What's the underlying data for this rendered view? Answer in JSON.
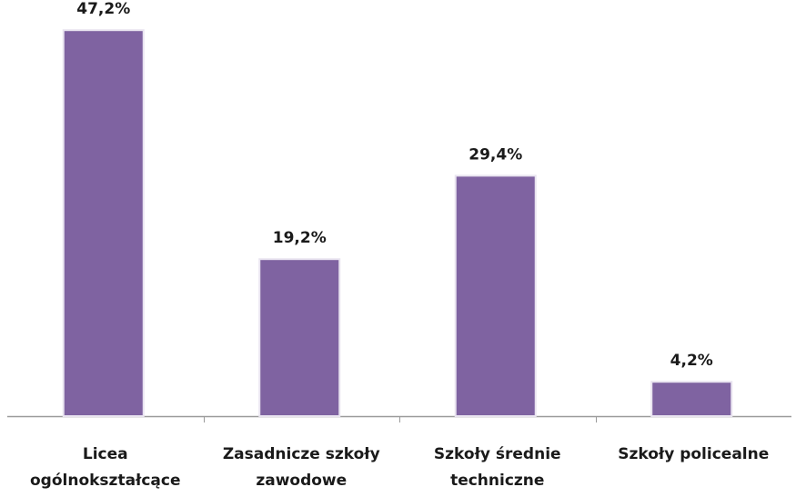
{
  "chart_data": {
    "type": "bar",
    "categories": [
      [
        "Licea",
        "ogólnokształcące"
      ],
      [
        "Zasadnicze szkoły",
        "zawodowe"
      ],
      [
        "Szkoły średnie",
        "techniczne"
      ],
      [
        "Szkoły policealne"
      ]
    ],
    "values": [
      47.2,
      19.2,
      29.4,
      4.2
    ],
    "data_labels": [
      "47,2%",
      "19,2%",
      "29,4%",
      "4,2%"
    ],
    "title": "",
    "xlabel": "",
    "ylabel": "",
    "ylim": [
      0,
      50
    ],
    "grid": false,
    "legend": "none",
    "colors": {
      "bar_fill": "#7f63a1",
      "bar_edge": "#e9e4f0",
      "axis": "#9a9a9a"
    }
  }
}
